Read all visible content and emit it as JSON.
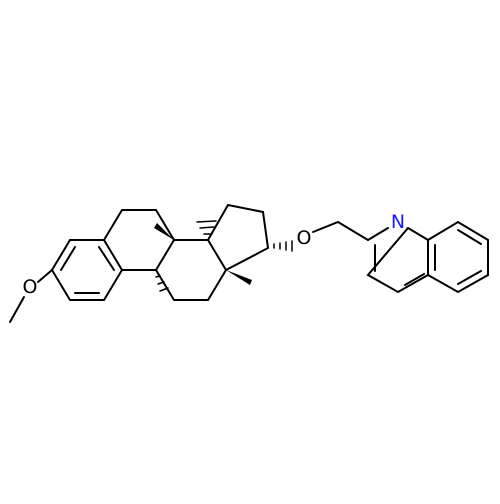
{
  "labels": [
    "O",
    "O",
    "N"
  ]
}
